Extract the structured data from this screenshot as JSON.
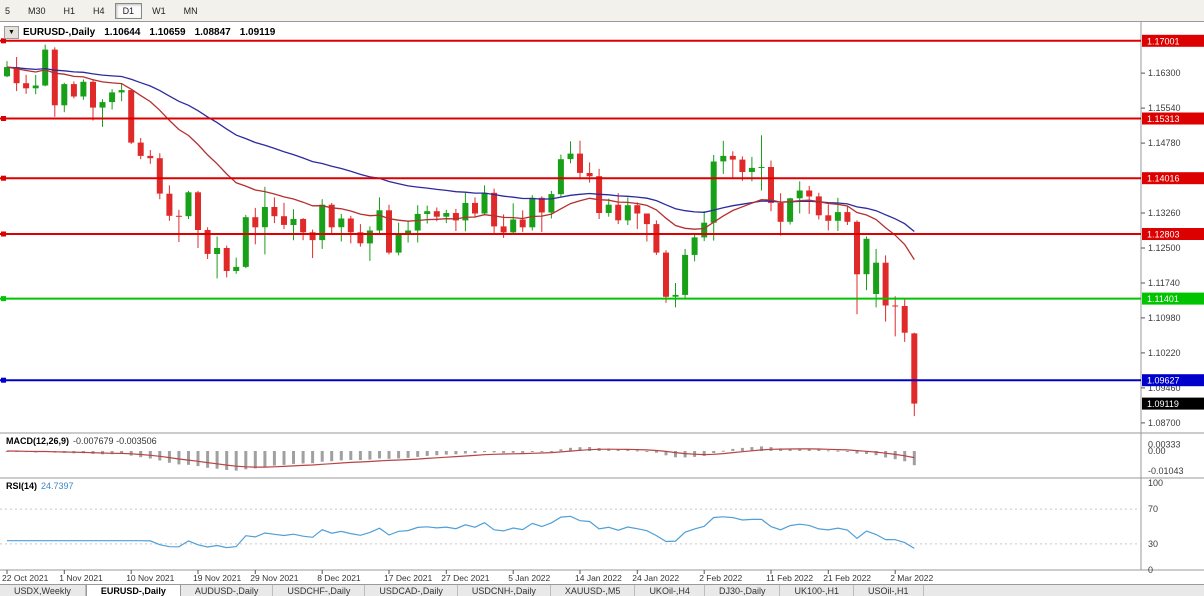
{
  "toolbar": {
    "periods": [
      {
        "label": "5",
        "active": false
      },
      {
        "label": "M30",
        "active": false
      },
      {
        "label": "H1",
        "active": false
      },
      {
        "label": "H4",
        "active": false
      },
      {
        "label": "D1",
        "active": true
      },
      {
        "label": "W1",
        "active": false
      },
      {
        "label": "MN",
        "active": false
      }
    ]
  },
  "chart": {
    "title": "EURUSD-,Daily",
    "ohlc_readout": {
      "open": "1.10644",
      "high": "1.10659",
      "low": "1.08847",
      "close": "1.09119"
    }
  },
  "indicators": {
    "macd": {
      "label": "MACD(12,26,9)",
      "values": "-0.007679 -0.003506"
    },
    "rsi": {
      "label": "RSI(14)",
      "values": "24.7397"
    }
  },
  "colors": {
    "candle_up": "#18a018",
    "candle_down": "#e02a2a",
    "ma_fast": "#b43030",
    "ma_slow": "#2b2b9e",
    "macd_hist": "#a0a0a0",
    "macd_signal": "#b84444",
    "rsi_line": "#4f9fd8",
    "level_red": "#dd0000",
    "level_green": "#00c400",
    "level_blue": "#0000cc",
    "price_black": "#000000"
  },
  "levels": [
    {
      "price": 1.17001,
      "label": "1.17001",
      "color": "#dd0000"
    },
    {
      "price": 1.15313,
      "label": "1.15313",
      "color": "#dd0000"
    },
    {
      "price": 1.14016,
      "label": "1.14016",
      "color": "#dd0000"
    },
    {
      "price": 1.12803,
      "label": "1.12803",
      "color": "#dd0000"
    },
    {
      "price": 1.11401,
      "label": "1.11401",
      "color": "#00c400"
    },
    {
      "price": 1.09627,
      "label": "1.09627",
      "color": "#0000cc"
    }
  ],
  "current_price": {
    "price": 1.09119,
    "label": "1.09119",
    "color": "#000000"
  },
  "price_axis_ticks": [
    "1.16300",
    "1.15540",
    "1.14780",
    "1.13260",
    "1.12500",
    "1.11740",
    "1.10980",
    "1.10220",
    "1.09460",
    "1.08700"
  ],
  "macd_axis_ticks": [
    {
      "label": "0.00333",
      "value": 0.00333
    },
    {
      "label": "0.00",
      "value": 0
    },
    {
      "label": "-0.01043",
      "value": -0.01043
    }
  ],
  "rsi_axis_ticks": [
    {
      "label": "100",
      "value": 100
    },
    {
      "label": "70",
      "value": 70
    },
    {
      "label": "30",
      "value": 30
    },
    {
      "label": "0",
      "value": 0
    }
  ],
  "date_ticks": [
    {
      "label": "22 Oct 2021",
      "index": 0
    },
    {
      "label": "1 Nov 2021",
      "index": 6
    },
    {
      "label": "10 Nov 2021",
      "index": 13
    },
    {
      "label": "19 Nov 2021",
      "index": 20
    },
    {
      "label": "29 Nov 2021",
      "index": 26
    },
    {
      "label": "8 Dec 2021",
      "index": 33
    },
    {
      "label": "17 Dec 2021",
      "index": 40
    },
    {
      "label": "27 Dec 2021",
      "index": 46
    },
    {
      "label": "5 Jan 2022",
      "index": 53
    },
    {
      "label": "14 Jan 2022",
      "index": 60
    },
    {
      "label": "24 Jan 2022",
      "index": 66
    },
    {
      "label": "2 Feb 2022",
      "index": 73
    },
    {
      "label": "11 Feb 2022",
      "index": 80
    },
    {
      "label": "21 Feb 2022",
      "index": 86
    },
    {
      "label": "2 Mar 2022",
      "index": 93
    }
  ],
  "tabs": [
    {
      "label": "USDX,Weekly",
      "active": false
    },
    {
      "label": "EURUSD-,Daily",
      "active": true
    },
    {
      "label": "AUDUSD-,Daily",
      "active": false
    },
    {
      "label": "USDCHF-,Daily",
      "active": false
    },
    {
      "label": "USDCAD-,Daily",
      "active": false
    },
    {
      "label": "USDCNH-,Daily",
      "active": false
    },
    {
      "label": "XAUUSD-,M5",
      "active": false
    },
    {
      "label": "UKOil-,H4",
      "active": false
    },
    {
      "label": "DJ30-,Daily",
      "active": false
    },
    {
      "label": "UK100-,H1",
      "active": false
    },
    {
      "label": "USOil-,H1",
      "active": false
    }
  ],
  "chart_data": {
    "type": "candlestick",
    "symbol": "EURUSD-,Daily",
    "price_range": [
      1.0848,
      1.1728
    ],
    "indicator_panels": [
      "MACD(12,26,9)",
      "RSI(14)"
    ],
    "ohlc": [
      [
        1.1623,
        1.1656,
        1.1621,
        1.1643
      ],
      [
        1.1643,
        1.1665,
        1.1591,
        1.1608
      ],
      [
        1.1608,
        1.1626,
        1.1585,
        1.1597
      ],
      [
        1.1597,
        1.1626,
        1.1584,
        1.1603
      ],
      [
        1.1603,
        1.1692,
        1.1601,
        1.1681
      ],
      [
        1.1681,
        1.1686,
        1.1535,
        1.156
      ],
      [
        1.156,
        1.1609,
        1.1545,
        1.1606
      ],
      [
        1.1606,
        1.1612,
        1.1575,
        1.1579
      ],
      [
        1.1579,
        1.1616,
        1.1572,
        1.1611
      ],
      [
        1.1611,
        1.1617,
        1.1527,
        1.1555
      ],
      [
        1.1555,
        1.1573,
        1.1513,
        1.1567
      ],
      [
        1.1567,
        1.1595,
        1.1551,
        1.1588
      ],
      [
        1.1588,
        1.1608,
        1.1569,
        1.1593
      ],
      [
        1.1593,
        1.1595,
        1.1476,
        1.1479
      ],
      [
        1.1479,
        1.1489,
        1.1443,
        1.145
      ],
      [
        1.145,
        1.1463,
        1.1433,
        1.1445
      ],
      [
        1.1445,
        1.1456,
        1.1356,
        1.1368
      ],
      [
        1.1368,
        1.1386,
        1.1309,
        1.132
      ],
      [
        1.132,
        1.1333,
        1.1263,
        1.1319
      ],
      [
        1.1319,
        1.1374,
        1.1313,
        1.1371
      ],
      [
        1.1371,
        1.1374,
        1.125,
        1.1289
      ],
      [
        1.1289,
        1.1295,
        1.1226,
        1.1237
      ],
      [
        1.1237,
        1.1275,
        1.1184,
        1.125
      ],
      [
        1.125,
        1.1255,
        1.1186,
        1.12
      ],
      [
        1.12,
        1.1229,
        1.1194,
        1.1209
      ],
      [
        1.1209,
        1.1322,
        1.1206,
        1.1317
      ],
      [
        1.1317,
        1.1337,
        1.1258,
        1.1295
      ],
      [
        1.1295,
        1.1383,
        1.1236,
        1.1339
      ],
      [
        1.1339,
        1.136,
        1.1304,
        1.1319
      ],
      [
        1.1319,
        1.1348,
        1.1291,
        1.13
      ],
      [
        1.13,
        1.1334,
        1.1267,
        1.1313
      ],
      [
        1.1313,
        1.1315,
        1.1267,
        1.1284
      ],
      [
        1.1284,
        1.129,
        1.1228,
        1.1267
      ],
      [
        1.1267,
        1.1356,
        1.1248,
        1.1344
      ],
      [
        1.1344,
        1.1348,
        1.128,
        1.1295
      ],
      [
        1.1295,
        1.1324,
        1.1264,
        1.1314
      ],
      [
        1.1314,
        1.132,
        1.126,
        1.1284
      ],
      [
        1.1284,
        1.1302,
        1.1253,
        1.126
      ],
      [
        1.126,
        1.1297,
        1.1222,
        1.1288
      ],
      [
        1.1288,
        1.136,
        1.128,
        1.1332
      ],
      [
        1.1332,
        1.1344,
        1.1236,
        1.124
      ],
      [
        1.124,
        1.1305,
        1.1234,
        1.128
      ],
      [
        1.128,
        1.131,
        1.1262,
        1.1288
      ],
      [
        1.1288,
        1.1343,
        1.1262,
        1.1324
      ],
      [
        1.1324,
        1.1342,
        1.1303,
        1.133
      ],
      [
        1.133,
        1.1338,
        1.1308,
        1.1318
      ],
      [
        1.1318,
        1.1333,
        1.1304,
        1.1326
      ],
      [
        1.1326,
        1.1335,
        1.1287,
        1.131
      ],
      [
        1.131,
        1.137,
        1.1286,
        1.1348
      ],
      [
        1.1348,
        1.136,
        1.1316,
        1.1325
      ],
      [
        1.1325,
        1.1386,
        1.1321,
        1.137
      ],
      [
        1.137,
        1.1379,
        1.1279,
        1.1297
      ],
      [
        1.1297,
        1.1323,
        1.1272,
        1.1284
      ],
      [
        1.1284,
        1.1347,
        1.128,
        1.1312
      ],
      [
        1.1312,
        1.1332,
        1.1285,
        1.1295
      ],
      [
        1.1295,
        1.1365,
        1.1288,
        1.1359
      ],
      [
        1.1359,
        1.1362,
        1.1285,
        1.1327
      ],
      [
        1.1327,
        1.1374,
        1.1314,
        1.1367
      ],
      [
        1.1367,
        1.1453,
        1.136,
        1.1443
      ],
      [
        1.1443,
        1.1482,
        1.1434,
        1.1455
      ],
      [
        1.1455,
        1.1483,
        1.1399,
        1.1413
      ],
      [
        1.1413,
        1.1436,
        1.1392,
        1.1406
      ],
      [
        1.1406,
        1.1422,
        1.1313,
        1.1326
      ],
      [
        1.1326,
        1.1357,
        1.1318,
        1.1344
      ],
      [
        1.1344,
        1.1369,
        1.1302,
        1.131
      ],
      [
        1.131,
        1.136,
        1.13,
        1.1343
      ],
      [
        1.1343,
        1.1349,
        1.1291,
        1.1325
      ],
      [
        1.1325,
        1.1325,
        1.1264,
        1.1302
      ],
      [
        1.1302,
        1.131,
        1.1235,
        1.124
      ],
      [
        1.124,
        1.1245,
        1.1131,
        1.1144
      ],
      [
        1.1144,
        1.1174,
        1.1121,
        1.1148
      ],
      [
        1.1148,
        1.1248,
        1.114,
        1.1235
      ],
      [
        1.1235,
        1.1279,
        1.1221,
        1.1273
      ],
      [
        1.1273,
        1.133,
        1.1265,
        1.1305
      ],
      [
        1.1305,
        1.1452,
        1.1266,
        1.1438
      ],
      [
        1.1438,
        1.1483,
        1.1411,
        1.145
      ],
      [
        1.145,
        1.146,
        1.1401,
        1.1442
      ],
      [
        1.1442,
        1.1449,
        1.1396,
        1.1415
      ],
      [
        1.1415,
        1.1448,
        1.1395,
        1.1424
      ],
      [
        1.1424,
        1.1495,
        1.1375,
        1.1426
      ],
      [
        1.1426,
        1.144,
        1.133,
        1.1348
      ],
      [
        1.1348,
        1.1369,
        1.1277,
        1.1307
      ],
      [
        1.1307,
        1.1359,
        1.1301,
        1.1358
      ],
      [
        1.1358,
        1.1395,
        1.1325,
        1.1375
      ],
      [
        1.1375,
        1.1385,
        1.1324,
        1.1362
      ],
      [
        1.1362,
        1.137,
        1.1312,
        1.1321
      ],
      [
        1.1321,
        1.1345,
        1.1288,
        1.1309
      ],
      [
        1.1309,
        1.1359,
        1.1287,
        1.1328
      ],
      [
        1.1328,
        1.1342,
        1.13,
        1.1307
      ],
      [
        1.1307,
        1.131,
        1.1106,
        1.1193
      ],
      [
        1.1193,
        1.1275,
        1.1158,
        1.127
      ],
      [
        1.115,
        1.1248,
        1.1121,
        1.1218
      ],
      [
        1.1218,
        1.1234,
        1.109,
        1.1125
      ],
      [
        1.1125,
        1.1145,
        1.1058,
        1.1124
      ],
      [
        1.1124,
        1.114,
        1.1046,
        1.1066
      ],
      [
        1.10644,
        1.10659,
        1.08847,
        1.09119
      ]
    ]
  }
}
